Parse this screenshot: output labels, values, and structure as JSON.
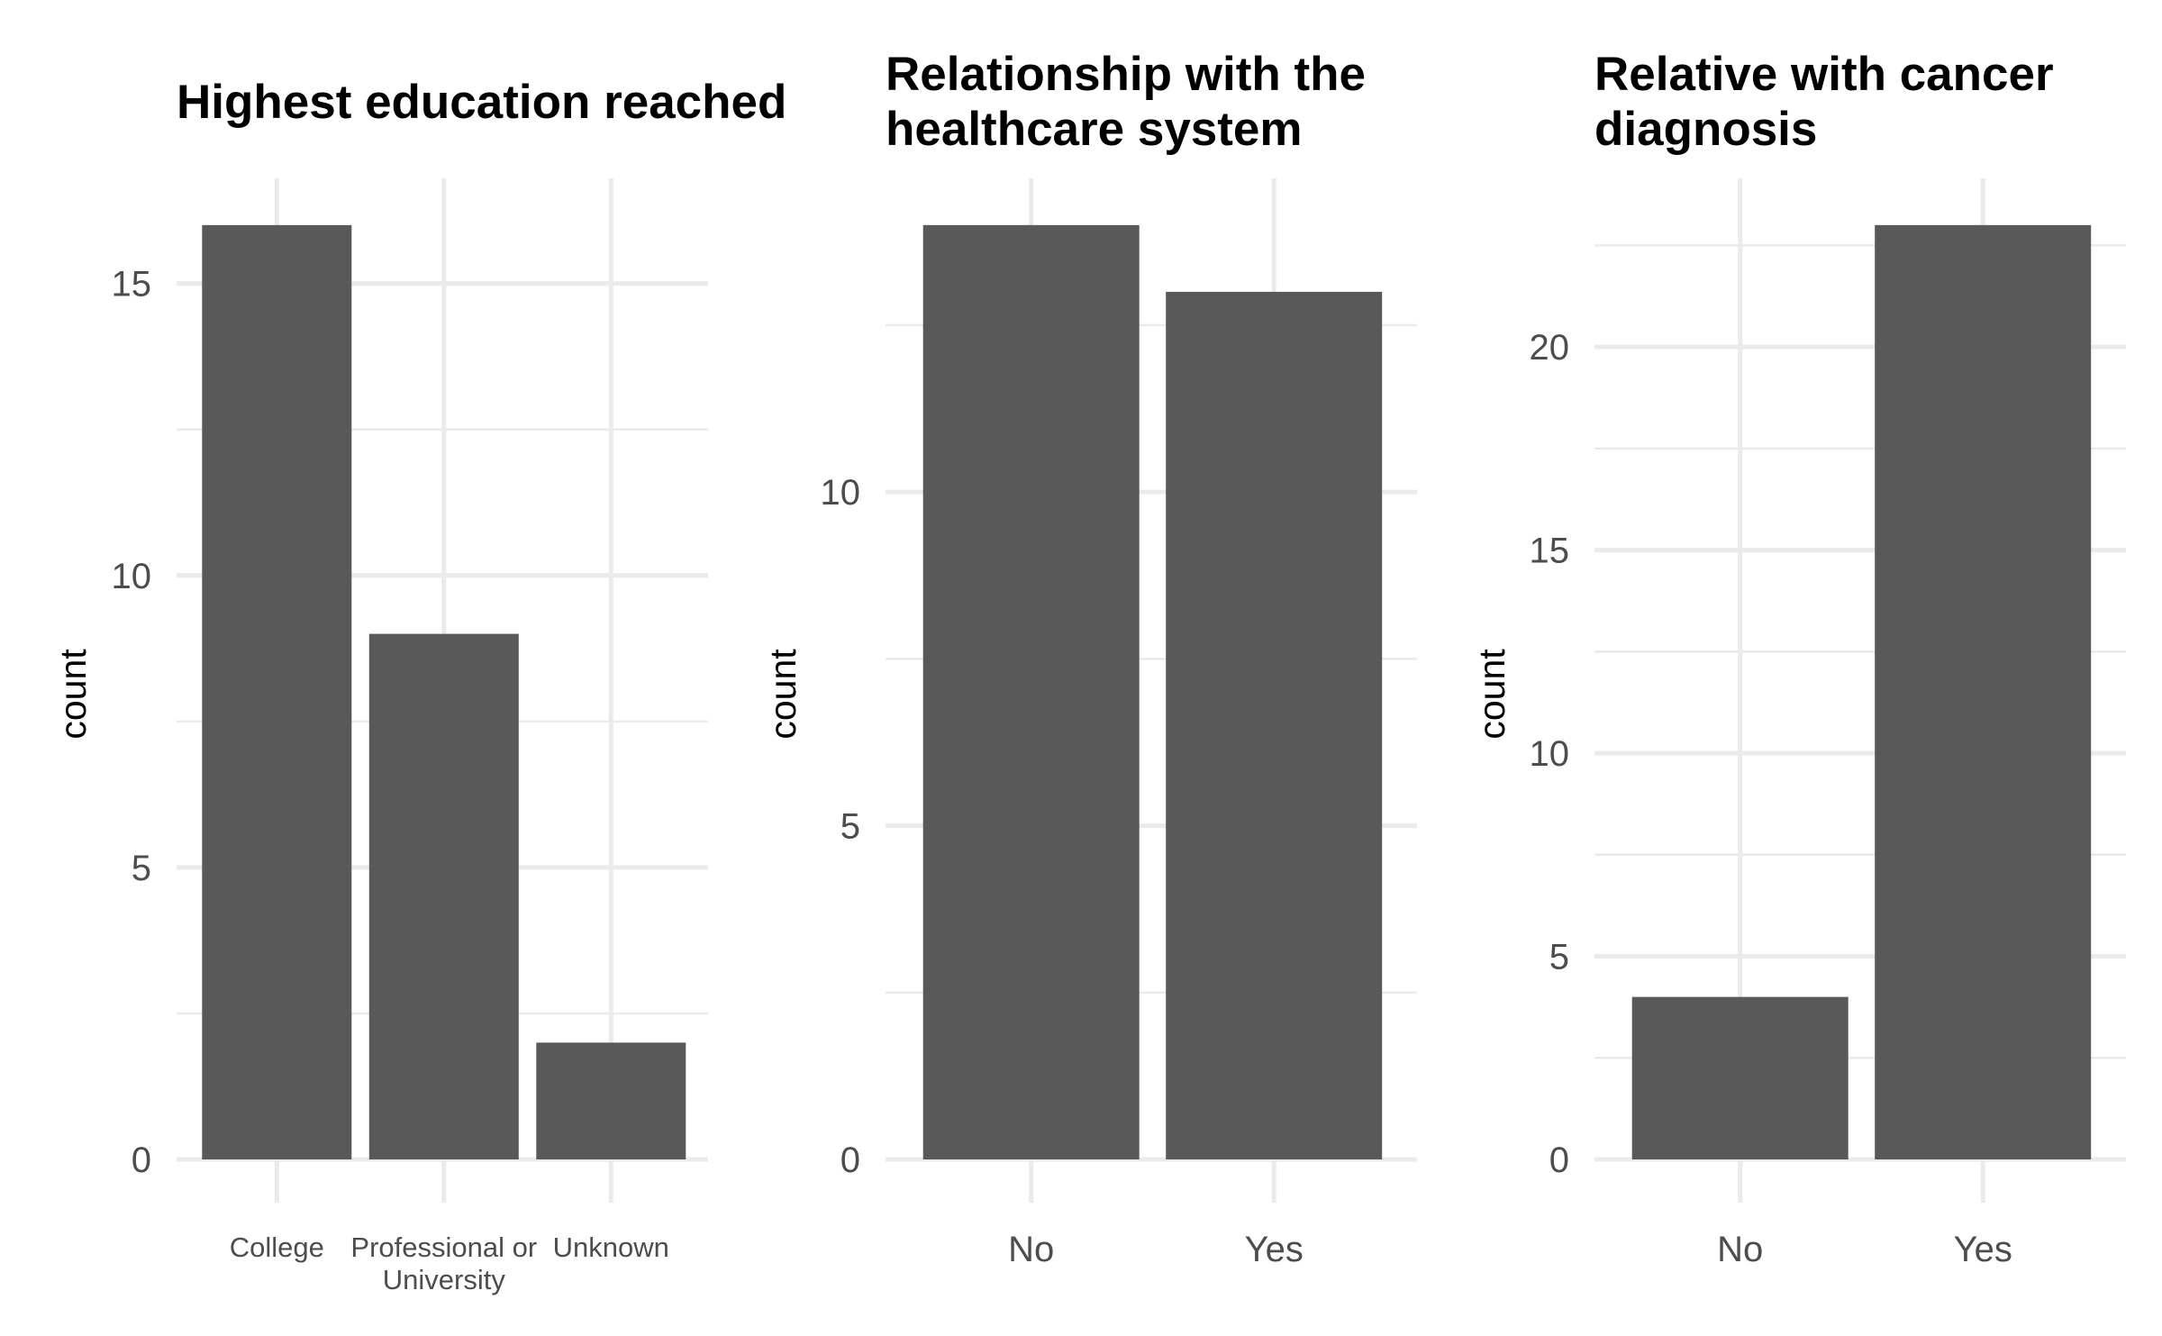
{
  "chart_data": [
    {
      "type": "bar",
      "title": "Highest education reached",
      "categories": [
        "College",
        "Professional or University",
        "Unknown"
      ],
      "values": [
        16,
        9,
        2
      ],
      "ylabel": "count",
      "xlabel": "",
      "ylim": [
        0,
        16.8
      ],
      "yticks": [
        0,
        5,
        10,
        15
      ],
      "grid": true,
      "bar_color": "#595959"
    },
    {
      "type": "bar",
      "title": "Relationship with the healthcare system",
      "categories": [
        "No",
        "Yes"
      ],
      "values": [
        14,
        13
      ],
      "ylabel": "count",
      "xlabel": "",
      "ylim": [
        0,
        14.7
      ],
      "yticks": [
        0,
        5,
        10
      ],
      "grid": true,
      "bar_color": "#595959"
    },
    {
      "type": "bar",
      "title": "Relative with cancer diagnosis",
      "categories": [
        "No",
        "Yes"
      ],
      "values": [
        4,
        23
      ],
      "ylabel": "count",
      "xlabel": "",
      "ylim": [
        0,
        24.15
      ],
      "yticks": [
        0,
        5,
        10,
        15,
        20
      ],
      "grid": true,
      "bar_color": "#595959"
    }
  ]
}
